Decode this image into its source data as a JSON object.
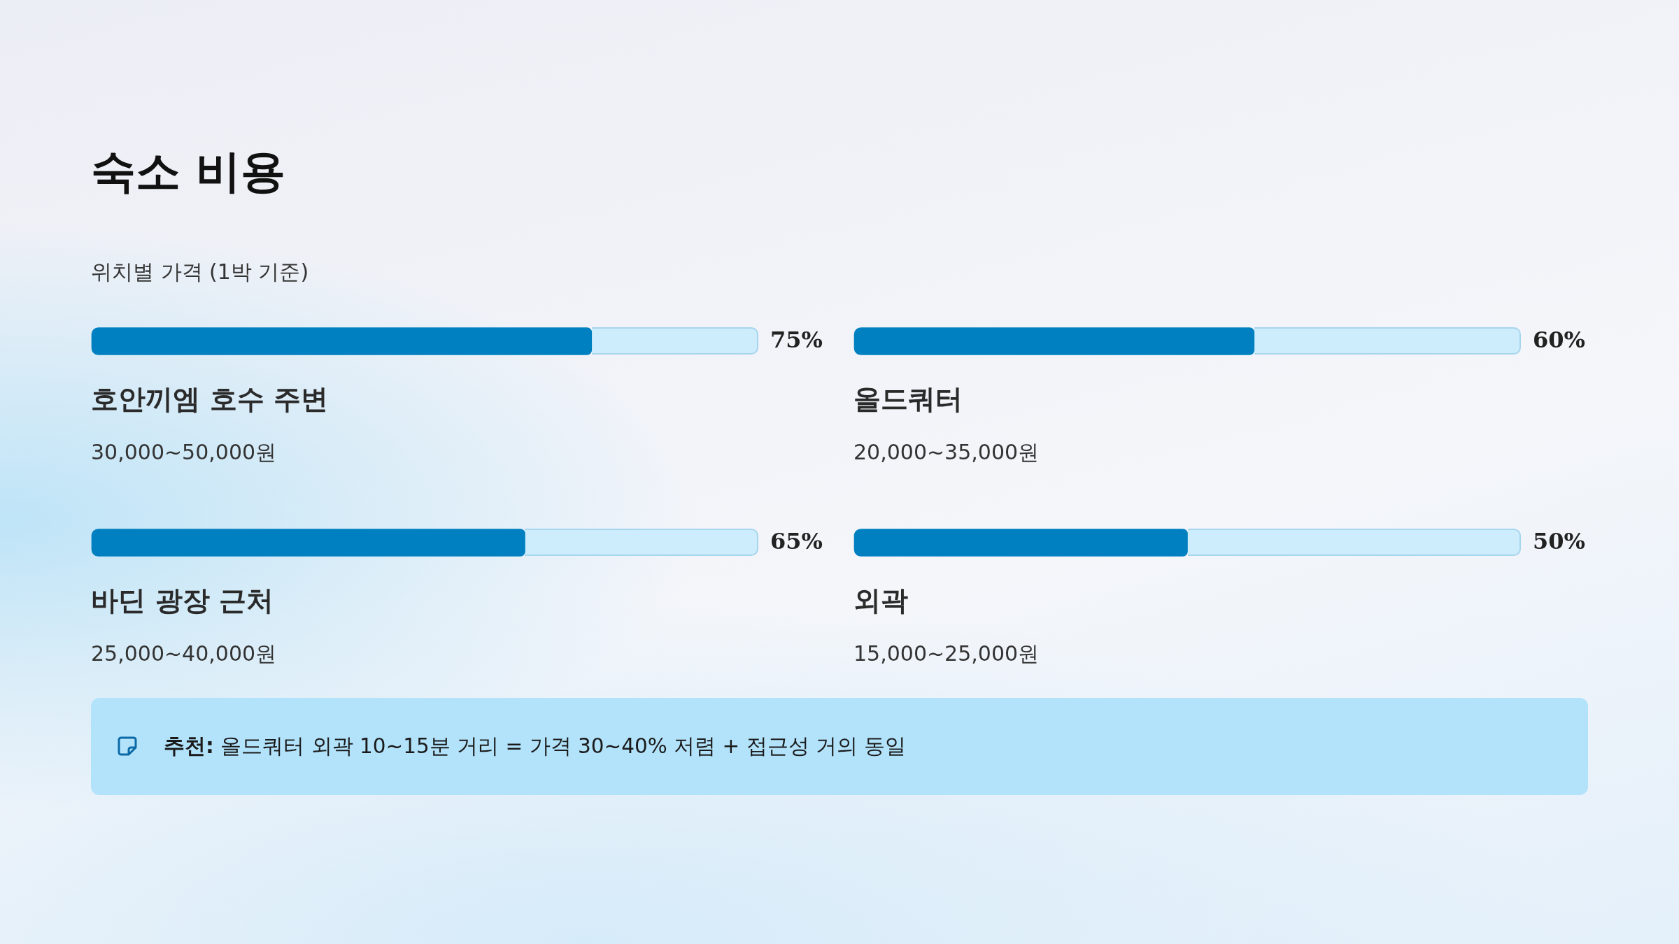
{
  "chart_data": [
    {
      "type": "bar",
      "orientation": "horizontal",
      "title": "숙소 비용",
      "subtitle": "위치별 가격 (1박 기준)",
      "categories": [
        "호안끼엠 호수 주변",
        "바딘 광장 근처"
      ],
      "values": [
        75,
        65
      ],
      "color": "#0080c0",
      "xlim": [
        0,
        100
      ],
      "tick_labels": "y",
      "value_labels": [
        "75%",
        "65%"
      ],
      "annotations": [
        "30,000~50,000원",
        "25,000~40,000원",
        "추천: 올드쿼터 외곽 10~15분 거리 = 가격 30~40% 저렴 + 접근성 거의 동일"
      ]
    },
    {
      "type": "bar",
      "orientation": "horizontal",
      "categories": [
        "올드쿼터",
        "외곽"
      ],
      "values": [
        60,
        50
      ],
      "color": "#0080c0",
      "xlim": [
        0,
        100
      ],
      "tick_labels": "y",
      "value_labels": [
        "60%",
        "50%"
      ],
      "annotations": [
        "20,000~35,000원",
        "15,000~25,000원"
      ]
    }
  ]
}
